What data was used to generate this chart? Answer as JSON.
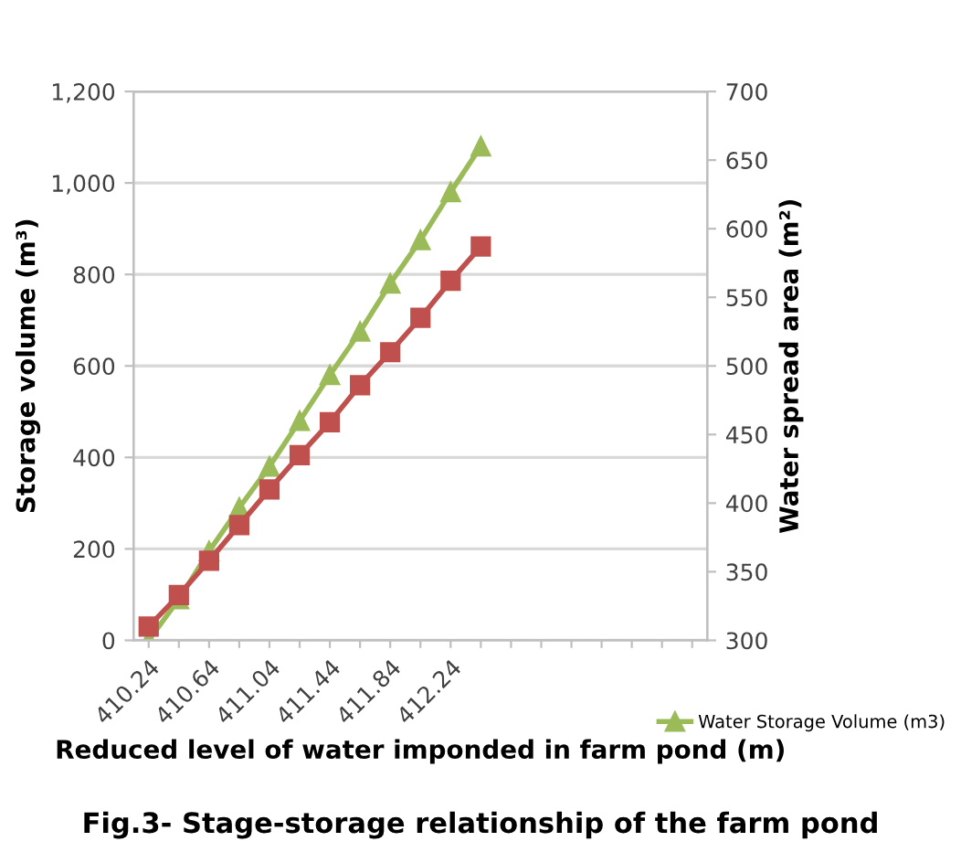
{
  "chart_data": {
    "type": "line",
    "title": "Fig.3- Stage-storage relationship of the farm pond",
    "xlabel": "Reduced level of water imponded in farm pond (m)",
    "ylabel": "Storage volume (m³)",
    "y2label": "Water spread area (m²)",
    "categories": [
      "410.24",
      null,
      "410.64",
      null,
      "411.04",
      null,
      "411.44",
      null,
      "411.84",
      null,
      "412.24",
      null,
      null,
      null,
      null,
      null,
      null,
      null,
      null
    ],
    "series": [
      {
        "name": "Water Storage Volume (m3)",
        "color": "#9bbb59",
        "marker": "triangle",
        "values": [
          0,
          90,
          195,
          290,
          380,
          480,
          580,
          675,
          780,
          875,
          980,
          1080,
          null,
          null,
          null,
          null,
          null,
          null,
          null
        ]
      },
      {
        "color": "#c0504d",
        "marker": "square",
        "axis": "y2",
        "values": [
          310,
          333,
          358,
          384,
          410,
          435,
          459,
          486,
          510,
          535,
          562,
          587,
          null,
          null,
          null,
          null,
          null,
          null,
          null
        ]
      }
    ],
    "ylim": [
      0,
      1200
    ],
    "yticks": [
      0,
      200,
      400,
      600,
      800,
      {
        "value": 1000,
        "label": "1,000"
      },
      {
        "value": 1200,
        "label": "1,200"
      }
    ],
    "y2lim": [
      300,
      700
    ],
    "y2ticks": [
      300,
      350,
      400,
      450,
      500,
      550,
      600,
      650,
      700
    ],
    "grid": "y",
    "legend": "bottom right",
    "line_style": "solid"
  }
}
